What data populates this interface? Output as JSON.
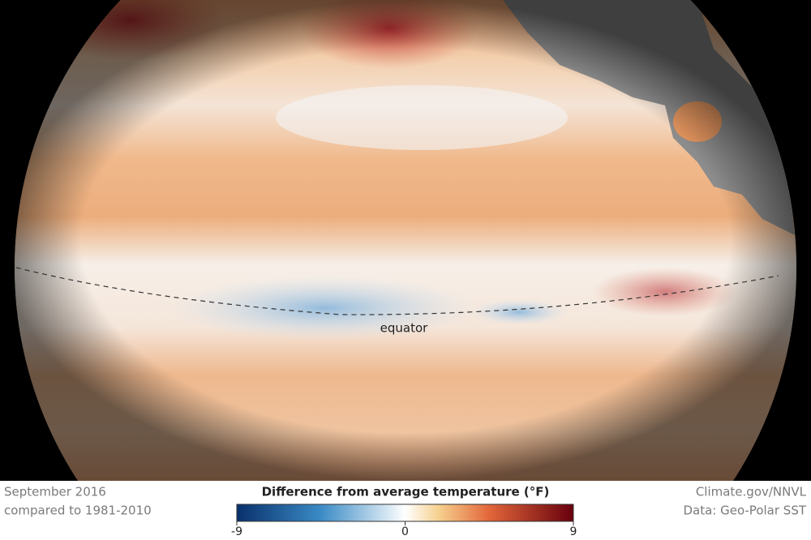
{
  "map": {
    "caption_left": [
      "September 2016",
      "compared to 1981-2010"
    ],
    "caption_right": [
      "Climate.gov/NNVL",
      "Data: Geo-Polar SST"
    ],
    "label": "equator"
  },
  "legend": {
    "title": "Difference from average temperature (°F)",
    "range": [
      -9,
      9
    ],
    "ticks": [
      -9,
      0,
      9
    ]
  }
}
